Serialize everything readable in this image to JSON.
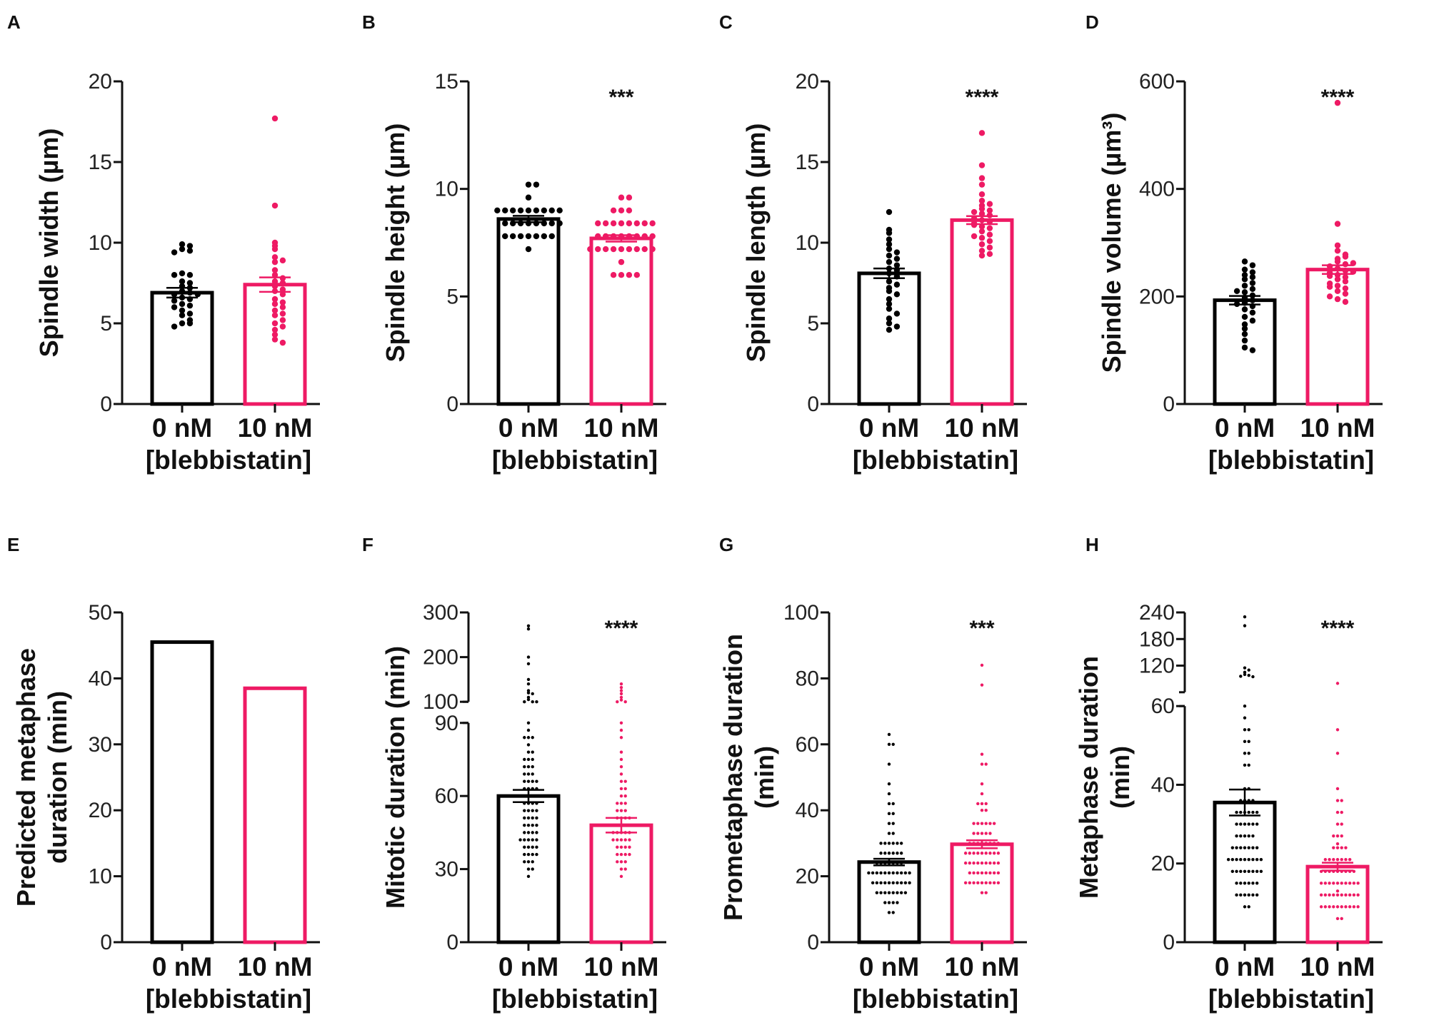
{
  "colors": {
    "control": "#000000",
    "treated": "#ee1a64"
  },
  "chart_data": [
    {
      "id": "A",
      "type": "bar",
      "ylabel": [
        "Spindle width (µm)"
      ],
      "xlabel": "[blebbistatin]",
      "ylim": [
        0,
        20
      ],
      "yticks": [
        0,
        5,
        10,
        15,
        20
      ],
      "stars": "",
      "bars": [
        {
          "category": "0 nM",
          "mean": 6.9,
          "sem": 0.3,
          "points": [
            9.9,
            9.8,
            9.6,
            9.5,
            9.4,
            8.1,
            8.0,
            8.0,
            7.6,
            7.5,
            7.3,
            7.2,
            7.0,
            6.9,
            6.8,
            6.8,
            6.6,
            6.5,
            6.4,
            6.2,
            6.1,
            6.0,
            5.8,
            5.6,
            5.5,
            5.2,
            5.0,
            5.0,
            4.8
          ]
        },
        {
          "category": "10 nM",
          "mean": 7.4,
          "sem": 0.45,
          "points": [
            17.7,
            12.3,
            10.0,
            9.8,
            9.6,
            9.1,
            8.9,
            8.8,
            8.3,
            8.0,
            7.8,
            7.6,
            7.5,
            7.3,
            7.1,
            7.0,
            6.8,
            6.5,
            6.3,
            6.2,
            6.0,
            5.8,
            5.6,
            5.5,
            5.2,
            5.0,
            4.8,
            4.6,
            4.3,
            4.0,
            3.8
          ]
        }
      ]
    },
    {
      "id": "B",
      "type": "bar",
      "ylabel": [
        "Spindle height (µm)"
      ],
      "xlabel": "[blebbistatin]",
      "ylim": [
        0,
        15
      ],
      "yticks": [
        0,
        5,
        10,
        15
      ],
      "stars": "***",
      "bars": [
        {
          "category": "0 nM",
          "mean": 8.6,
          "sem": 0.15,
          "points": [
            10.2,
            10.2,
            9.6,
            9.0,
            9.0,
            9.0,
            9.0,
            9.0,
            9.0,
            9.0,
            9.0,
            9.0,
            8.4,
            8.4,
            8.4,
            8.4,
            8.4,
            8.4,
            8.4,
            8.4,
            7.8,
            7.8,
            7.8,
            7.8,
            7.8,
            7.8,
            7.8,
            7.2
          ]
        },
        {
          "category": "10 nM",
          "mean": 7.7,
          "sem": 0.15,
          "points": [
            9.6,
            9.6,
            9.0,
            9.0,
            9.0,
            8.4,
            8.4,
            8.4,
            8.4,
            8.4,
            8.4,
            8.4,
            8.4,
            7.8,
            7.8,
            7.8,
            7.8,
            7.8,
            7.8,
            7.8,
            7.8,
            7.2,
            7.2,
            7.2,
            7.2,
            7.2,
            7.2,
            7.2,
            7.2,
            7.2,
            6.6,
            6.0,
            6.0,
            6.0,
            6.0
          ]
        }
      ]
    },
    {
      "id": "C",
      "type": "bar",
      "ylabel": [
        "Spindle length (µm)"
      ],
      "xlabel": "[blebbistatin]",
      "ylim": [
        0,
        20
      ],
      "yticks": [
        0,
        5,
        10,
        15,
        20
      ],
      "stars": "****",
      "bars": [
        {
          "category": "0 nM",
          "mean": 8.1,
          "sem": 0.3,
          "points": [
            11.9,
            10.8,
            10.6,
            10.2,
            9.9,
            9.6,
            9.4,
            9.2,
            9.0,
            8.8,
            8.6,
            8.4,
            8.3,
            8.1,
            7.9,
            7.6,
            7.4,
            7.2,
            7.0,
            6.8,
            6.5,
            6.2,
            5.9,
            5.6,
            5.3,
            5.0,
            4.8,
            4.6
          ]
        },
        {
          "category": "10 nM",
          "mean": 11.4,
          "sem": 0.25,
          "points": [
            16.8,
            14.8,
            14.0,
            13.6,
            13.0,
            12.6,
            12.3,
            12.1,
            12.0,
            11.8,
            11.7,
            11.5,
            11.4,
            11.3,
            11.2,
            11.0,
            10.9,
            10.7,
            10.5,
            10.3,
            10.1,
            9.9,
            9.7,
            9.5,
            9.3,
            9.2,
            11.9,
            12.4,
            10.4,
            11.1
          ]
        }
      ]
    },
    {
      "id": "D",
      "type": "bar",
      "ylabel": [
        "Spindle volume (µm³)"
      ],
      "xlabel": "[blebbistatin]",
      "ylim": [
        0,
        600
      ],
      "yticks": [
        0,
        200,
        400,
        600
      ],
      "stars": "****",
      "bars": [
        {
          "category": "0 nM",
          "mean": 193,
          "sem": 8,
          "points": [
            265,
            258,
            250,
            245,
            240,
            232,
            225,
            220,
            214,
            208,
            202,
            198,
            193,
            188,
            182,
            176,
            170,
            162,
            155,
            148,
            140,
            130,
            118,
            105,
            100,
            236,
            210,
            186
          ]
        },
        {
          "category": "10 nM",
          "mean": 250,
          "sem": 8,
          "points": [
            560,
            335,
            295,
            285,
            278,
            270,
            265,
            260,
            256,
            252,
            248,
            244,
            240,
            236,
            232,
            228,
            224,
            220,
            215,
            210,
            205,
            200,
            195,
            190,
            262,
            274,
            246,
            238,
            218
          ]
        }
      ]
    },
    {
      "id": "E",
      "type": "bar",
      "ylabel": [
        "Predicted metaphase",
        "duration (min)"
      ],
      "xlabel": "[blebbistatin]",
      "ylim": [
        0,
        50
      ],
      "yticks": [
        0,
        10,
        20,
        30,
        40,
        50
      ],
      "stars": "",
      "bars": [
        {
          "category": "0 nM",
          "mean": 45.5,
          "sem": 0,
          "points": []
        },
        {
          "category": "10 nM",
          "mean": 38.5,
          "sem": 0,
          "points": []
        }
      ]
    },
    {
      "id": "F",
      "type": "bar",
      "ylabel": [
        "Mitotic duration (min)"
      ],
      "xlabel": "[blebbistatin]",
      "ylim_segments": [
        [
          0,
          90
        ],
        [
          100,
          300
        ]
      ],
      "yticks": [
        0,
        30,
        60,
        90,
        100,
        200,
        300
      ],
      "stars": "****",
      "bars": [
        {
          "category": "0 nM",
          "mean": 60,
          "sem": 2.5,
          "points": [
            270,
            263,
            200,
            185,
            150,
            140,
            125,
            120,
            118,
            110,
            105,
            100,
            96,
            93,
            90,
            87,
            84,
            84,
            84,
            81,
            78,
            78,
            75,
            75,
            75,
            72,
            72,
            72,
            69,
            69,
            69,
            66,
            66,
            66,
            66,
            63,
            63,
            63,
            63,
            60,
            60,
            60,
            60,
            57,
            57,
            57,
            57,
            54,
            54,
            54,
            54,
            51,
            51,
            51,
            51,
            48,
            48,
            48,
            48,
            45,
            45,
            45,
            45,
            42,
            42,
            42,
            42,
            42,
            39,
            39,
            39,
            39,
            36,
            36,
            36,
            36,
            33,
            33,
            33,
            30,
            30,
            27
          ]
        },
        {
          "category": "10 nM",
          "mean": 48,
          "sem": 3,
          "points": [
            140,
            132,
            125,
            118,
            110,
            104,
            100,
            96,
            90,
            87,
            84,
            78,
            75,
            72,
            69,
            66,
            66,
            63,
            63,
            60,
            60,
            57,
            57,
            57,
            54,
            54,
            54,
            51,
            51,
            51,
            51,
            48,
            48,
            48,
            48,
            45,
            45,
            45,
            45,
            45,
            42,
            42,
            42,
            42,
            42,
            39,
            39,
            39,
            39,
            36,
            36,
            36,
            36,
            33,
            33,
            33,
            30,
            30,
            27
          ]
        }
      ]
    },
    {
      "id": "G",
      "type": "bar",
      "ylabel": [
        "Prometaphase duration",
        "(min)"
      ],
      "xlabel": "[blebbistatin]",
      "ylim": [
        0,
        100
      ],
      "yticks": [
        0,
        20,
        40,
        60,
        80,
        100
      ],
      "stars": "***",
      "bars": [
        {
          "category": "0 nM",
          "mean": 24.3,
          "sem": 1,
          "points": [
            63,
            60,
            60,
            54,
            48,
            45,
            42,
            42,
            39,
            39,
            36,
            36,
            33,
            33,
            30,
            30,
            30,
            30,
            30,
            30,
            27,
            27,
            27,
            27,
            27,
            27,
            24,
            24,
            24,
            24,
            24,
            24,
            24,
            21,
            21,
            21,
            21,
            21,
            21,
            21,
            21,
            21,
            21,
            21,
            18,
            18,
            18,
            18,
            18,
            18,
            18,
            18,
            18,
            18,
            15,
            15,
            15,
            15,
            15,
            15,
            15,
            15,
            12,
            12,
            12,
            12,
            9,
            9
          ]
        },
        {
          "category": "10 nM",
          "mean": 29.7,
          "sem": 1.2,
          "points": [
            84,
            78,
            57,
            54,
            54,
            48,
            45,
            42,
            42,
            42,
            40,
            40,
            36,
            36,
            36,
            36,
            36,
            36,
            33,
            33,
            33,
            33,
            33,
            30,
            30,
            30,
            30,
            30,
            30,
            30,
            30,
            27,
            27,
            27,
            27,
            27,
            27,
            27,
            27,
            27,
            24,
            24,
            24,
            24,
            24,
            24,
            24,
            24,
            24,
            21,
            21,
            21,
            21,
            21,
            21,
            21,
            21,
            18,
            18,
            18,
            18,
            18,
            18,
            18,
            18,
            18,
            15,
            15
          ]
        }
      ]
    },
    {
      "id": "H",
      "type": "bar",
      "ylabel": [
        "Metaphase duration",
        "(min)"
      ],
      "xlabel": "[blebbistatin]",
      "ylim_segments": [
        [
          0,
          60
        ],
        [
          60,
          240
        ]
      ],
      "yticks": [
        0,
        20,
        40,
        60,
        120,
        180,
        240
      ],
      "stars": "****",
      "bars": [
        {
          "category": "0 nM",
          "mean": 35.5,
          "sem": 3.3,
          "points": [
            230,
            210,
            115,
            110,
            105,
            100,
            98,
            96,
            95,
            60,
            57,
            54,
            54,
            51,
            51,
            48,
            48,
            45,
            45,
            39,
            39,
            36,
            36,
            36,
            36,
            33,
            33,
            33,
            33,
            33,
            33,
            30,
            30,
            30,
            30,
            30,
            30,
            27,
            27,
            27,
            27,
            27,
            24,
            24,
            24,
            24,
            24,
            24,
            24,
            21,
            21,
            21,
            21,
            21,
            21,
            21,
            21,
            21,
            18,
            18,
            18,
            18,
            18,
            18,
            18,
            18,
            15,
            15,
            15,
            15,
            15,
            15,
            12,
            12,
            12,
            12,
            12,
            12,
            9,
            9
          ]
        },
        {
          "category": "10 nM",
          "mean": 19.2,
          "sem": 1,
          "points": [
            80,
            54,
            48,
            39,
            36,
            36,
            33,
            33,
            30,
            30,
            27,
            27,
            27,
            25,
            24,
            24,
            24,
            24,
            21,
            21,
            21,
            21,
            21,
            21,
            21,
            18,
            18,
            18,
            18,
            18,
            18,
            18,
            18,
            18,
            15,
            15,
            15,
            15,
            15,
            15,
            15,
            15,
            15,
            15,
            13,
            12,
            12,
            12,
            12,
            12,
            12,
            12,
            12,
            12,
            12,
            9,
            9,
            9,
            9,
            9,
            9,
            9,
            9,
            9,
            9,
            6,
            6
          ]
        }
      ]
    }
  ]
}
